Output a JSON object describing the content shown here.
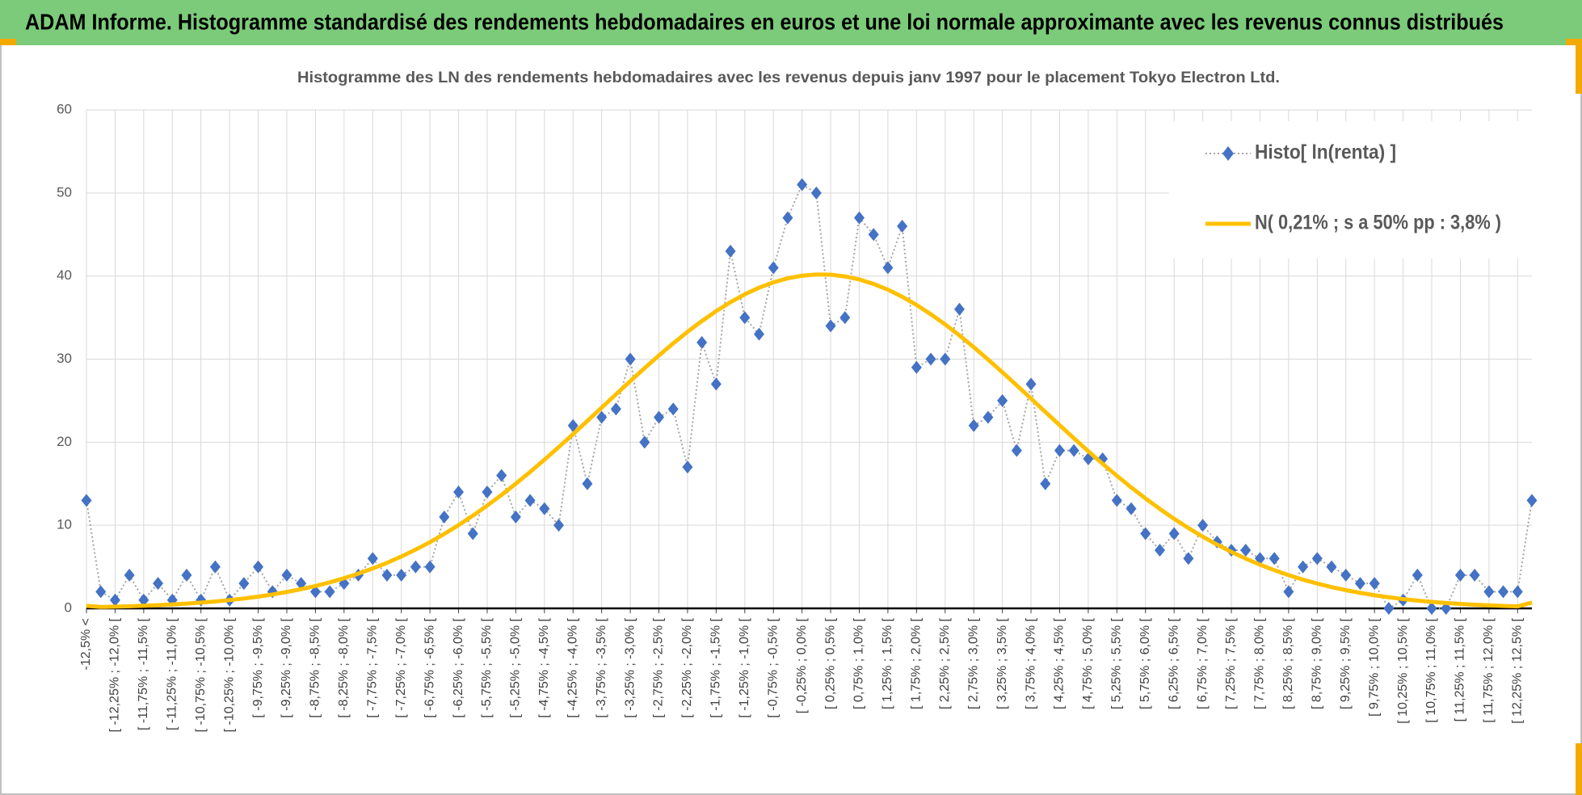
{
  "header": {
    "title": "ADAM Informe. Histogramme standardisé des rendements hebdomadaires en euros et une loi normale approximante avec les revenus connus distribués"
  },
  "chart_data": {
    "type": "line",
    "title": "Histogramme  des LN des rendements  hebdomadaires avec les revenus depuis janv 1997 pour le placement Tokyo Electron Ltd.",
    "categories": [
      "-12,5% <",
      null,
      "[ -12,25% ; -12,0% [",
      null,
      "[ -11,75% ; -11,5% [",
      null,
      "[ -11,25% ; -11,0% [",
      null,
      "[ -10,75% ; -10,5% [",
      null,
      "[ -10,25% ; -10,0% [",
      null,
      "[ -9,75% ; -9,5% [",
      null,
      "[ -9,25% ; -9,0% [",
      null,
      "[ -8,75% ; -8,5% [",
      null,
      "[ -8,25% ; -8,0% [",
      null,
      "[ -7,75% ; -7,5% [",
      null,
      "[ -7,25% ; -7,0% [",
      null,
      "[ -6,75% ; -6,5% [",
      null,
      "[ -6,25% ; -6,0% [",
      null,
      "[ -5,75% ; -5,5% [",
      null,
      "[ -5,25% ; -5,0% [",
      null,
      "[ -4,75% ; -4,5% [",
      null,
      "[ -4,25% ; -4,0% [",
      null,
      "[ -3,75% ; -3,5% [",
      null,
      "[ -3,25% ; -3,0% [",
      null,
      "[ -2,75% ; -2,5% [",
      null,
      "[ -2,25% ; -2,0% [",
      null,
      "[ -1,75% ; -1,5% [",
      null,
      "[ -1,25% ; -1,0% [",
      null,
      "[ -0,75% ; -0,5% [",
      null,
      "[ -0,25% ; 0,0% [",
      null,
      "[ 0,25% ; 0,5% [",
      null,
      "[ 0,75% ; 1,0% [",
      null,
      "[ 1,25% ; 1,5% [",
      null,
      "[ 1,75% ; 2,0% [",
      null,
      "[ 2,25% ; 2,5% [",
      null,
      "[ 2,75% ; 3,0% [",
      null,
      "[ 3,25% ; 3,5% [",
      null,
      "[ 3,75% ; 4,0% [",
      null,
      "[ 4,25% ; 4,5% [",
      null,
      "[ 4,75% ; 5,0% [",
      null,
      "[ 5,25% ; 5,5% [",
      null,
      "[ 5,75% ; 6,0% [",
      null,
      "[ 6,25% ; 6,5% [",
      null,
      "[ 6,75% ; 7,0% [",
      null,
      "[ 7,25% ; 7,5% [",
      null,
      "[ 7,75% ; 8,0% [",
      null,
      "[ 8,25% ; 8,5% [",
      null,
      "[ 8,75% ; 9,0% [",
      null,
      "[ 9,25% ; 9,5% [",
      null,
      "[ 9,75% ; 10,0% [",
      null,
      "[ 10,25% ; 10,5% [",
      null,
      "[ 10,75% ; 11,0% [",
      null,
      "[ 11,25% ; 11,5% [",
      null,
      "[ 11,75% ; 12,0% [",
      null,
      "[ 12,25% ; 12,5% [",
      null
    ],
    "series": [
      {
        "name": "Histo[ ln(renta) ]",
        "color": "#4472c4",
        "line_color": "#a6a6a6",
        "marker": "diamond",
        "values": [
          13,
          2,
          1,
          4,
          1,
          3,
          1,
          4,
          1,
          5,
          1,
          3,
          5,
          2,
          4,
          3,
          2,
          2,
          3,
          4,
          6,
          4,
          4,
          5,
          5,
          11,
          14,
          9,
          14,
          16,
          11,
          13,
          12,
          10,
          22,
          15,
          23,
          24,
          30,
          20,
          23,
          24,
          17,
          32,
          27,
          43,
          35,
          33,
          41,
          47,
          51,
          50,
          34,
          35,
          47,
          45,
          41,
          46,
          29,
          30,
          30,
          36,
          22,
          23,
          25,
          19,
          27,
          15,
          19,
          19,
          18,
          18,
          13,
          12,
          9,
          7,
          9,
          6,
          10,
          8,
          7,
          7,
          6,
          6,
          2,
          5,
          6,
          5,
          4,
          3,
          3,
          0,
          1,
          4,
          0,
          0,
          4,
          4,
          2,
          2,
          2,
          13
        ]
      },
      {
        "name": "N( 0,21% ; s a 50% pp : 3,8% )",
        "color": "#ffc000",
        "marker": "none",
        "values": [
          0.3,
          0.17,
          0.21,
          0.26,
          0.31,
          0.39,
          0.47,
          0.57,
          0.69,
          0.83,
          1.0,
          1.19,
          1.41,
          1.67,
          1.97,
          2.31,
          2.69,
          3.13,
          3.63,
          4.18,
          4.8,
          5.48,
          6.24,
          7.07,
          7.97,
          8.96,
          10.02,
          11.16,
          12.37,
          13.65,
          15.01,
          16.42,
          17.89,
          19.41,
          20.97,
          22.56,
          24.16,
          25.76,
          27.35,
          28.92,
          30.44,
          31.9,
          33.29,
          34.58,
          35.78,
          36.85,
          37.8,
          38.6,
          39.24,
          39.73,
          40.04,
          40.19,
          40.16,
          39.96,
          39.59,
          39.05,
          38.36,
          37.51,
          36.52,
          35.4,
          34.18,
          32.85,
          31.44,
          29.95,
          28.42,
          26.85,
          25.25,
          23.65,
          22.05,
          20.47,
          18.92,
          17.41,
          15.96,
          14.56,
          13.23,
          11.97,
          10.78,
          9.67,
          8.63,
          7.68,
          6.79,
          5.99,
          5.26,
          4.6,
          4.0,
          3.46,
          2.99,
          2.56,
          2.19,
          1.87,
          1.58,
          1.34,
          1.12,
          0.94,
          0.78,
          0.65,
          0.54,
          0.44,
          0.36,
          0.29,
          0.24,
          0.7
        ]
      }
    ],
    "ylim": [
      0,
      60
    ],
    "yticks": [
      0,
      10,
      20,
      30,
      40,
      50,
      60
    ],
    "grid": true,
    "legend": "top-right"
  }
}
